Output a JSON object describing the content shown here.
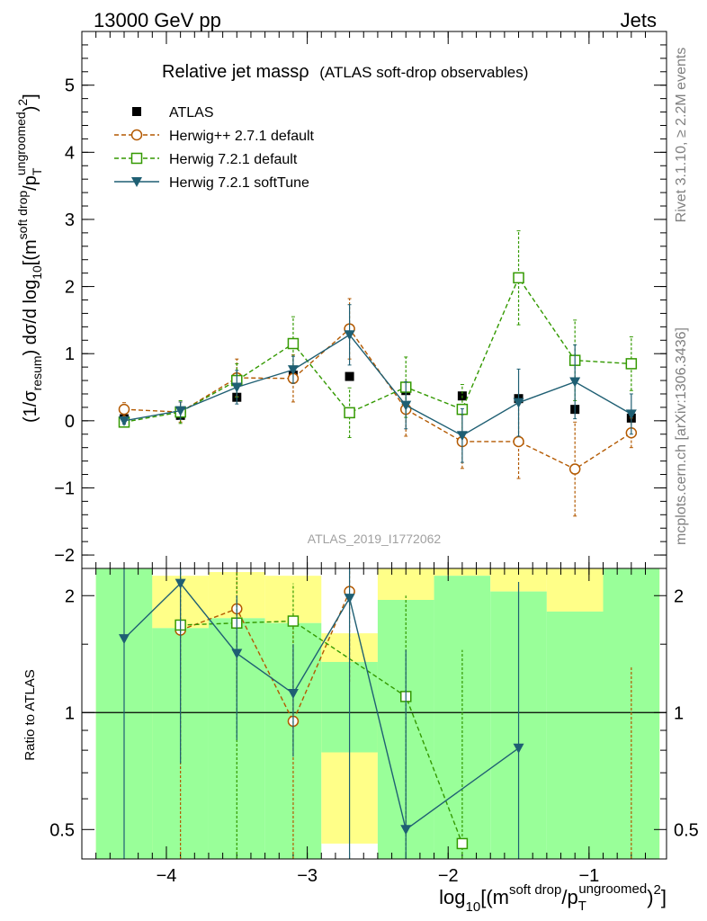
{
  "header": {
    "left": "13000 GeV pp",
    "right": "Jets"
  },
  "side_text": {
    "rivet": "Rivet 3.1.10, ≥ 2.2M events",
    "mcplots": "mcplots.cern.ch [arXiv:1306.3436]"
  },
  "colors": {
    "atlas": "#000000",
    "herwig_pp": "#b35900",
    "herwig_default": "#339900",
    "herwig_soft": "#1f5f73",
    "band_green": "#99ff99",
    "band_yellow": "#ffff88"
  },
  "chart_data": [
    {
      "type": "scatter",
      "panel": "main",
      "title": "Relative jet mass",
      "title_symbol": "ρ",
      "subtitle": "(ATLAS soft-drop observables)",
      "watermark": "ATLAS_2019_I1772062",
      "ylabel": {
        "prefix": "(1/σ",
        "sub1": "resum",
        "mid": ") dσ/d log",
        "sub2": "10",
        "post": "[(m",
        "sup1": "soft drop",
        "slash": "/p",
        "sub3": "T",
        "sup2": "ungroomed",
        "end": ")",
        "sup3": "2",
        "close": "]"
      },
      "xlim": [
        -4.6,
        -0.45
      ],
      "ylim": [
        -2.2,
        5.8
      ],
      "yticks": [
        -2,
        -1,
        0,
        1,
        2,
        3,
        4,
        5
      ],
      "ytick_labels": [
        "−2",
        "−1",
        "0",
        "1",
        "2",
        "3",
        "4",
        "5"
      ],
      "legend_position": "top-left",
      "legend": [
        "ATLAS",
        "Herwig++ 2.7.1 default",
        "Herwig 7.2.1 default",
        "Herwig 7.2.1 softTune"
      ],
      "series": [
        {
          "name": "ATLAS",
          "style": "square",
          "x": [
            -4.3,
            -3.9,
            -3.5,
            -3.1,
            -2.7,
            -2.3,
            -1.9,
            -1.5,
            -1.1,
            -0.7
          ],
          "y": [
            0.03,
            0.08,
            0.35,
            0.68,
            0.66,
            0.45,
            0.37,
            0.33,
            0.17,
            0.04
          ]
        },
        {
          "name": "Herwig++ 2.7.1 default",
          "style": "circle-dashed",
          "x": [
            -4.3,
            -3.9,
            -3.5,
            -3.1,
            -2.7,
            -2.3,
            -1.9,
            -1.5,
            -1.1,
            -0.7
          ],
          "y": [
            0.17,
            0.13,
            0.64,
            0.63,
            1.37,
            0.17,
            -0.31,
            -0.31,
            -0.72,
            -0.18
          ],
          "err": [
            0.1,
            0.15,
            0.28,
            0.35,
            0.45,
            0.4,
            0.4,
            0.55,
            0.7,
            0.22
          ]
        },
        {
          "name": "Herwig 7.2.1 default",
          "style": "square-dashed",
          "x": [
            -4.3,
            -3.9,
            -3.5,
            -3.1,
            -2.7,
            -2.3,
            -1.9,
            -1.5,
            -1.1,
            -0.7
          ],
          "y": [
            -0.02,
            0.13,
            0.6,
            1.15,
            0.12,
            0.5,
            0.17,
            2.13,
            0.9,
            0.85
          ],
          "err": [
            0.06,
            0.17,
            0.25,
            0.4,
            0.37,
            0.45,
            0.37,
            0.7,
            0.6,
            0.4
          ]
        },
        {
          "name": "Herwig 7.2.1 softTune",
          "style": "triangle-solid",
          "x": [
            -4.3,
            -3.9,
            -3.5,
            -3.1,
            -2.7,
            -2.3,
            -1.9,
            -1.5,
            -1.1,
            -0.7
          ],
          "y": [
            0.0,
            0.15,
            0.5,
            0.76,
            1.28,
            0.23,
            -0.22,
            0.27,
            0.58,
            0.1
          ],
          "err": [
            0.05,
            0.13,
            0.25,
            0.2,
            0.45,
            0.35,
            0.4,
            0.5,
            0.55,
            0.3
          ]
        }
      ]
    },
    {
      "type": "scatter",
      "panel": "ratio",
      "ylabel": "Ratio to ATLAS",
      "yscale": "log",
      "ylim": [
        0.42,
        2.35
      ],
      "yticks": [
        0.5,
        1,
        2
      ],
      "ytick_labels": [
        "0.5",
        "1",
        "2"
      ],
      "xlim": [
        -4.6,
        -0.45
      ],
      "xticks": [
        -4,
        -3,
        -2,
        -1
      ],
      "xtick_labels": [
        "−4",
        "−3",
        "−2",
        "−1"
      ],
      "xlabel": {
        "pre": "log",
        "sub1": "10",
        "post": "[(m",
        "sup1": "soft drop",
        "slash": "/p",
        "sub2": "T",
        "sup2": "ungroomed",
        "end": ")",
        "sup3": "2",
        "close": "]"
      },
      "bands": [
        {
          "x0": -4.5,
          "x1": -4.1,
          "yellow": [
            0.42,
            2.35
          ],
          "green": [
            0.42,
            2.35
          ]
        },
        {
          "x0": -4.1,
          "x1": -3.7,
          "yellow": [
            1.65,
            2.25
          ],
          "green": [
            0.42,
            1.65
          ]
        },
        {
          "x0": -3.7,
          "x1": -3.3,
          "yellow": [
            1.75,
            2.3
          ],
          "green": [
            0.42,
            1.75
          ]
        },
        {
          "x0": -3.3,
          "x1": -2.9,
          "yellow": [
            1.7,
            2.25
          ],
          "green": [
            0.42,
            1.7
          ]
        },
        {
          "x0": -2.9,
          "x1": -2.5,
          "yellow": [
            0.46,
            1.6
          ],
          "green": [
            0.79,
            1.35
          ]
        },
        {
          "x0": -2.5,
          "x1": -2.1,
          "yellow": [
            1.95,
            2.35
          ],
          "green": [
            0.42,
            1.95
          ]
        },
        {
          "x0": -2.1,
          "x1": -1.7,
          "yellow": [
            2.25,
            2.35
          ],
          "green": [
            0.42,
            2.25
          ]
        },
        {
          "x0": -1.7,
          "x1": -1.3,
          "yellow": [
            2.05,
            2.35
          ],
          "green": [
            0.42,
            2.05
          ]
        },
        {
          "x0": -1.3,
          "x1": -0.9,
          "yellow": [
            1.82,
            2.35
          ],
          "green": [
            0.42,
            1.82
          ]
        },
        {
          "x0": -0.9,
          "x1": -0.5,
          "yellow": [
            0.42,
            2.35
          ],
          "green": [
            0.42,
            2.35
          ]
        }
      ],
      "series": [
        {
          "name": "Herwig++ 2.7.1 default",
          "x": [
            -3.9,
            -3.5,
            -3.1,
            -2.7,
            -0.7
          ],
          "y": [
            1.63,
            1.85,
            0.95,
            2.05,
            null
          ],
          "err_lo": [
            0.42,
            1.1,
            0.35,
            1.2,
            0.42
          ],
          "err_hi": [
            2.35,
            2.3,
            1.72,
            2.35,
            1.32
          ]
        },
        {
          "name": "Herwig 7.2.1 default",
          "x": [
            -3.9,
            -3.5,
            -3.1,
            -2.3,
            -1.9
          ],
          "y": [
            1.68,
            1.7,
            1.72,
            1.1,
            0.46
          ],
          "err_lo": [
            0.74,
            0.42,
            0.82,
            0.42,
            0.42
          ],
          "err_hi": [
            2.35,
            2.3,
            2.15,
            2.0,
            1.45
          ]
        },
        {
          "name": "Herwig 7.2.1 softTune",
          "x": [
            -4.3,
            -3.9,
            -3.5,
            -3.1,
            -2.7,
            -2.3,
            -1.5
          ],
          "y": [
            1.55,
            2.15,
            1.42,
            1.12,
            1.97,
            0.5,
            0.81
          ],
          "err_lo": [
            0.42,
            0.74,
            0.85,
            0.77,
            0.42,
            0.42,
            0.42
          ],
          "err_hi": [
            2.35,
            2.35,
            2.0,
            1.5,
            2.35,
            1.45,
            2.17
          ]
        }
      ]
    }
  ]
}
